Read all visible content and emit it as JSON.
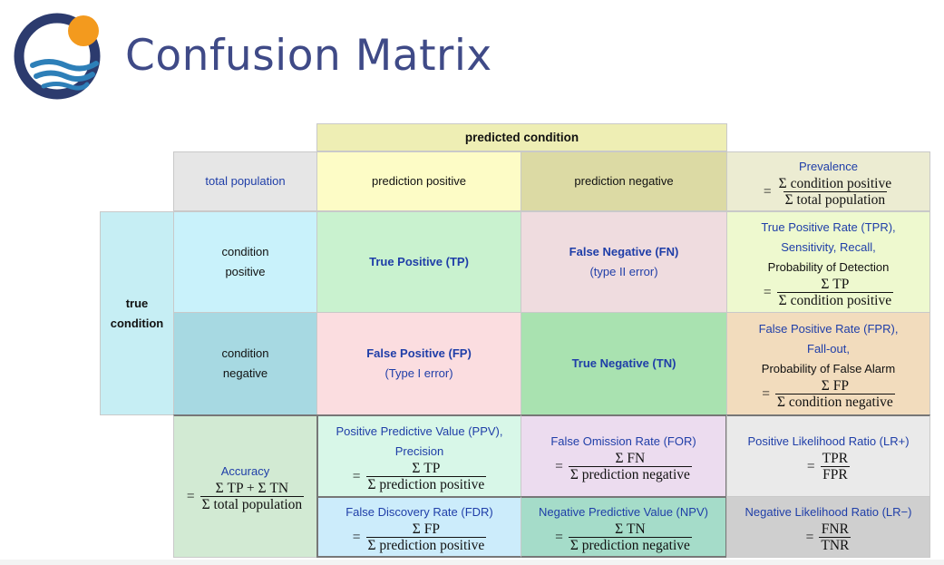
{
  "title": "Confusion Matrix",
  "colors": {
    "title": "#3f4a87",
    "logo_ring": "#2c3b6e",
    "logo_sun": "#f39a1e",
    "logo_wave": "#2d7fb8"
  },
  "logo": {
    "icon": "sun-over-sea-logo"
  },
  "matrix": {
    "predicted_condition": "predicted condition",
    "total_population": "total population",
    "prediction_positive": "prediction positive",
    "prediction_negative": "prediction negative",
    "true_condition": {
      "line1": "true",
      "line2": "condition"
    },
    "condition_positive": {
      "line1": "condition",
      "line2": "positive"
    },
    "condition_negative": {
      "line1": "condition",
      "line2": "negative"
    },
    "prevalence": {
      "label": "Prevalence",
      "num": "Σ condition positive",
      "den": "Σ total population"
    },
    "tp": {
      "label": "True Positive (TP)"
    },
    "fn": {
      "label": "False Negative (FN)",
      "note": "(type II error)"
    },
    "fp": {
      "label": "False Positive (FP)",
      "note": "(Type I error)"
    },
    "tn": {
      "label": "True Negative (TN)"
    },
    "tpr": {
      "line1": "True Positive Rate (TPR),",
      "line2": "Sensitivity, Recall,",
      "line3": "Probability of Detection",
      "num": "Σ TP",
      "den": "Σ condition positive"
    },
    "fpr": {
      "line1": "False Positive Rate (FPR),",
      "line2": "Fall-out,",
      "line3": "Probability of False Alarm",
      "num": "Σ FP",
      "den": "Σ condition negative"
    },
    "accuracy": {
      "label": "Accuracy",
      "num": "Σ TP + Σ TN",
      "den": "Σ total population"
    },
    "ppv": {
      "line1": "Positive Predictive Value (PPV),",
      "line2": "Precision",
      "num": "Σ TP",
      "den": "Σ prediction positive"
    },
    "for_rate": {
      "label": "False Omission Rate (FOR)",
      "num": "Σ FN",
      "den": "Σ prediction negative"
    },
    "lr_pos": {
      "label": "Positive Likelihood Ratio (LR+)",
      "num": "TPR",
      "den": "FPR"
    },
    "fdr": {
      "label": "False Discovery Rate (FDR)",
      "num": "Σ FP",
      "den": "Σ prediction positive"
    },
    "npv": {
      "label": "Negative Predictive Value (NPV)",
      "num": "Σ TN",
      "den": "Σ prediction negative"
    },
    "lr_neg": {
      "label": "Negative Likelihood Ratio (LR−)",
      "num": "FNR",
      "den": "TNR"
    }
  }
}
